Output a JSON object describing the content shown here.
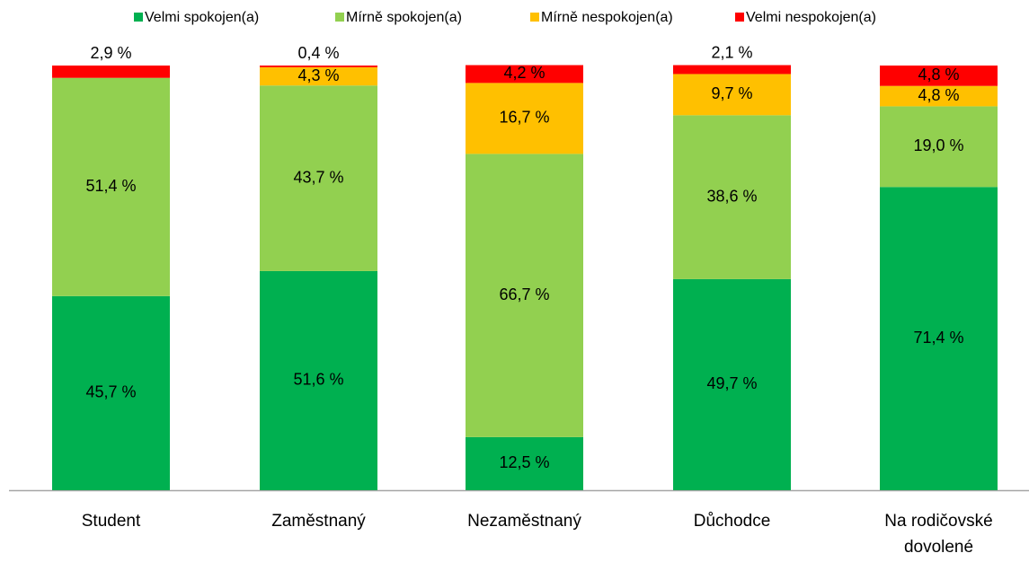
{
  "chart_data": {
    "type": "stacked_bar",
    "categories": [
      "Student",
      "Zaměstnaný",
      "Nezaměstnaný",
      "Důchodce",
      "Na rodičovské dovolené"
    ],
    "ylim": [
      0,
      100
    ],
    "series": [
      {
        "name": "Velmi spokojen(a)",
        "color": "#00b050",
        "values": [
          45.7,
          51.6,
          12.5,
          49.7,
          71.4
        ],
        "value_labels": [
          "45,7 %",
          "51,6 %",
          "12,5 %",
          "49,7 %",
          "71,4 %"
        ]
      },
      {
        "name": "Mírně spokojen(a)",
        "color": "#92d050",
        "values": [
          51.4,
          43.7,
          66.7,
          38.6,
          19.0
        ],
        "value_labels": [
          "51,4 %",
          "43,7 %",
          "66,7 %",
          "38,6 %",
          "19,0 %"
        ]
      },
      {
        "name": "Mírně nespokojen(a)",
        "color": "#ffc000",
        "values": [
          0,
          4.3,
          16.7,
          9.7,
          4.8
        ],
        "value_labels": [
          null,
          "4,3 %",
          "16,7 %",
          "9,7 %",
          "4,8 %"
        ]
      },
      {
        "name": "Velmi nespokojen(a)",
        "color": "#ff0000",
        "values": [
          2.9,
          0.4,
          4.2,
          2.1,
          4.8
        ],
        "value_labels": [
          "2,9 %",
          "0,4 %",
          "4,2 %",
          "2,1 %",
          "4,8 %"
        ]
      }
    ]
  }
}
